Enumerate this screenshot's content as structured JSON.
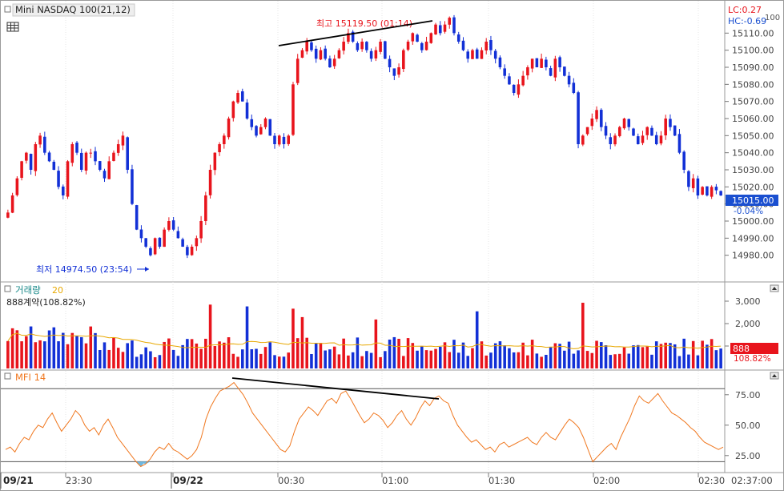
{
  "title": "Mini NASDAQ 100(21,12)",
  "lc_label": "LC:0.27",
  "hc_label": "HC:-0.69",
  "hc_extra": "100",
  "high_annotation": "최고 15119.50 (01:14)",
  "low_annotation": "최저 14974.50 (23:54)",
  "price_ticks": [
    "15110.00",
    "15100.00",
    "15090.00",
    "15080.00",
    "15070.00",
    "15060.00",
    "15050.00",
    "15040.00",
    "15030.00",
    "15020.00",
    "15010.00",
    "15000.00",
    "14990.00",
    "14980.00"
  ],
  "current_price_label": "15015.00",
  "current_change_label": "-0.04%",
  "volume_title": "거래량",
  "volume_ma": "20",
  "volume_subtitle": "888계약(108.82%)",
  "volume_ticks": [
    "3,000",
    "2,000",
    "1,000"
  ],
  "volume_badge": "888",
  "volume_badge_pct": "108.82%",
  "mfi_title": "MFI 14",
  "mfi_ticks": [
    "75.00",
    "50.00",
    "25.00"
  ],
  "x_labels": [
    "09/21",
    "23:30",
    "09/22",
    "00:30",
    "01:00",
    "01:30",
    "02:00",
    "02:30"
  ],
  "x_last": "02:37:00",
  "colors": {
    "up": "#e8141c",
    "down": "#1230d6",
    "ma": "#e8a800",
    "mfi": "#f07820",
    "grid": "#c8c8c8",
    "current": "#1a4fd0",
    "volbadge": "#e8141c"
  },
  "chart_data": [
    {
      "type": "candlestick",
      "title": "Mini NASDAQ 100(21,12)",
      "y_range": [
        14970,
        15120
      ],
      "high": {
        "value": 15119.5,
        "time": "01:14"
      },
      "low": {
        "value": 14974.5,
        "time": "23:54"
      },
      "last": 15015.0,
      "closes": [
        15005,
        15015,
        15025,
        15035,
        15040,
        15030,
        15045,
        15050,
        15040,
        15035,
        15030,
        15020,
        15015,
        15035,
        15045,
        15040,
        15030,
        15040,
        15040,
        15035,
        15030,
        15025,
        15035,
        15040,
        15045,
        15050,
        15030,
        15010,
        14995,
        14990,
        14985,
        14980,
        14990,
        14985,
        14995,
        15000,
        14995,
        14990,
        14985,
        14980,
        14985,
        14990,
        15000,
        15015,
        15030,
        15040,
        15045,
        15050,
        15060,
        15070,
        15075,
        15070,
        15060,
        15055,
        15050,
        15055,
        15060,
        15050,
        15045,
        15050,
        15045,
        15050,
        15080,
        15095,
        15100,
        15105,
        15100,
        15095,
        15100,
        15095,
        15090,
        15095,
        15100,
        15105,
        15110,
        15105,
        15100,
        15105,
        15100,
        15095,
        15100,
        15105,
        15095,
        15090,
        15085,
        15090,
        15100,
        15105,
        15110,
        15105,
        15100,
        15105,
        15110,
        15115,
        15110,
        15115,
        15119,
        15110,
        15105,
        15100,
        15095,
        15100,
        15095,
        15100,
        15105,
        15100,
        15095,
        15090,
        15085,
        15080,
        15075,
        15080,
        15085,
        15090,
        15095,
        15090,
        15095,
        15090,
        15085,
        15095,
        15090,
        15085,
        15080,
        15075,
        15045,
        15050,
        15055,
        15060,
        15065,
        15055,
        15050,
        15045,
        15050,
        15055,
        15060,
        15055,
        15050,
        15045,
        15050,
        15055,
        15050,
        15045,
        15050,
        15060,
        15055,
        15050,
        15040,
        15030,
        15020,
        15025,
        15015,
        15020,
        15015,
        15020,
        15018,
        15015
      ]
    },
    {
      "type": "bar",
      "title": "거래량",
      "y_range": [
        0,
        3500
      ],
      "ma_period": 20,
      "last": 888
    },
    {
      "type": "line",
      "title": "MFI 14",
      "y_range": [
        15,
        90
      ],
      "levels": [
        80,
        20
      ],
      "values": [
        30,
        32,
        28,
        35,
        40,
        38,
        45,
        50,
        48,
        55,
        60,
        52,
        45,
        50,
        55,
        62,
        58,
        50,
        45,
        48,
        42,
        50,
        55,
        48,
        40,
        35,
        30,
        25,
        20,
        16,
        18,
        22,
        28,
        32,
        30,
        35,
        30,
        28,
        25,
        22,
        25,
        30,
        40,
        55,
        65,
        72,
        78,
        80,
        82,
        85,
        80,
        75,
        68,
        60,
        55,
        50,
        45,
        40,
        35,
        30,
        28,
        33,
        45,
        55,
        60,
        65,
        62,
        58,
        64,
        70,
        72,
        68,
        76,
        78,
        72,
        65,
        58,
        52,
        55,
        60,
        58,
        54,
        48,
        52,
        58,
        62,
        55,
        50,
        56,
        64,
        70,
        66,
        72,
        74,
        70,
        68,
        58,
        50,
        45,
        40,
        36,
        38,
        34,
        30,
        32,
        28,
        34,
        36,
        32,
        34,
        36,
        38,
        40,
        36,
        34,
        40,
        44,
        40,
        38,
        44,
        50,
        55,
        52,
        48,
        40,
        30,
        20,
        24,
        28,
        32,
        35,
        30,
        40,
        48,
        56,
        66,
        74,
        70,
        68,
        72,
        76,
        70,
        65,
        60,
        58,
        55,
        52,
        48,
        45,
        40,
        36,
        34,
        32,
        30,
        32
      ]
    }
  ]
}
